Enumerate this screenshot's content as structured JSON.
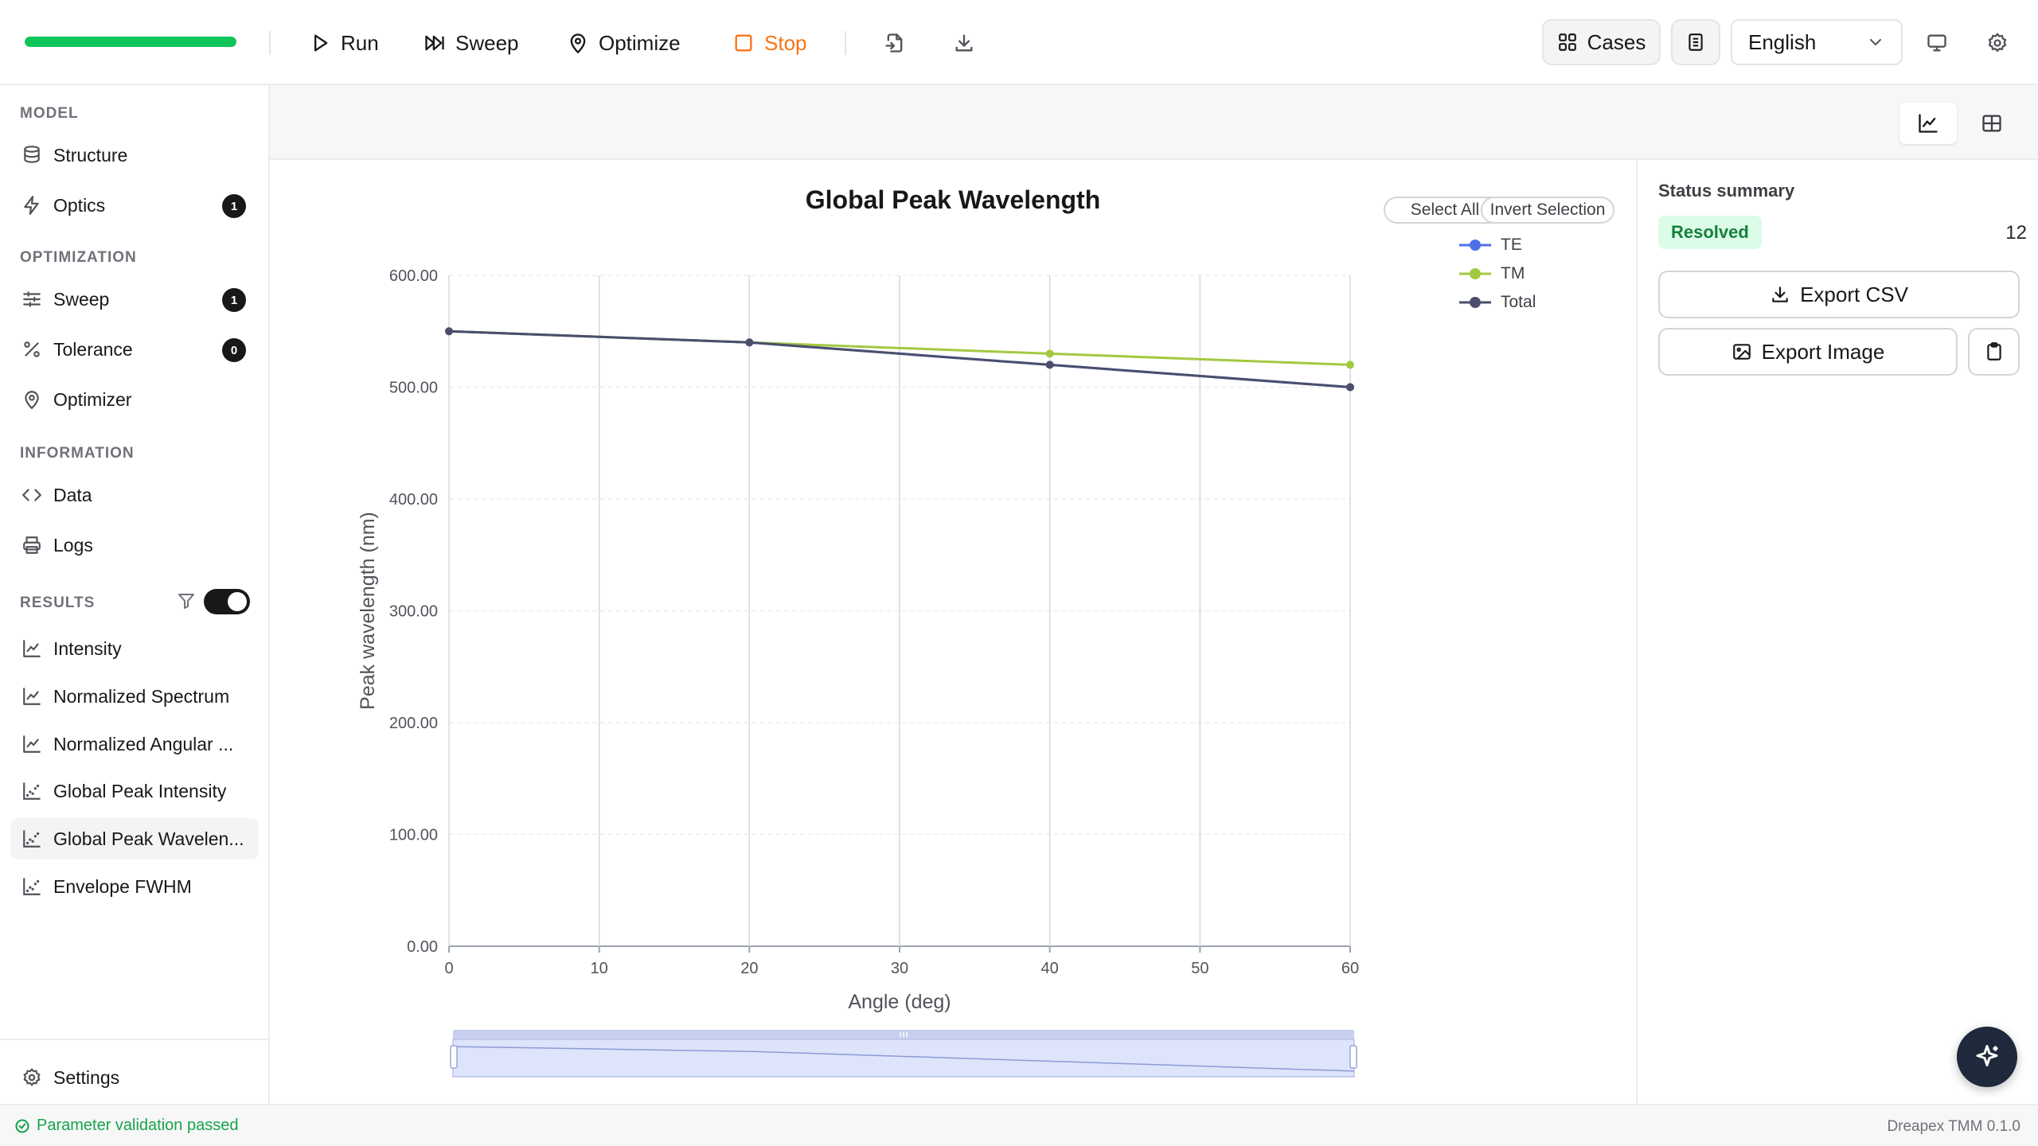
{
  "toolbar": {
    "progress_percent": 100,
    "run_label": "Run",
    "sweep_label": "Sweep",
    "optimize_label": "Optimize",
    "stop_label": "Stop",
    "cases_label": "Cases",
    "language": "English"
  },
  "sidebar": {
    "model_heading": "MODEL",
    "structure": "Structure",
    "optics": "Optics",
    "optics_badge": "1",
    "optimization_heading": "OPTIMIZATION",
    "sweep": "Sweep",
    "sweep_badge": "1",
    "tolerance": "Tolerance",
    "tolerance_badge": "0",
    "optimizer": "Optimizer",
    "information_heading": "INFORMATION",
    "data": "Data",
    "logs": "Logs",
    "results_heading": "RESULTS",
    "results_toggle_on": true,
    "results": [
      "Intensity",
      "Normalized Spectrum",
      "Normalized Angular ...",
      "Global Peak Intensity",
      "Global Peak Wavelen...",
      "Envelope FWHM"
    ],
    "active_result": "Global Peak Wavelen...",
    "settings": "Settings"
  },
  "chart_buttons": {
    "select_all": "Select All",
    "invert_selection": "Invert Selection"
  },
  "chart_data": {
    "type": "line",
    "title": "Global Peak Wavelength",
    "xlabel": "Angle (deg)",
    "ylabel": "Peak wavelength (nm)",
    "xlim": [
      0,
      60
    ],
    "ylim": [
      0,
      600
    ],
    "xticks": [
      0,
      10,
      20,
      30,
      40,
      50,
      60
    ],
    "yticks": [
      "0.00",
      "100.00",
      "200.00",
      "300.00",
      "400.00",
      "500.00",
      "600.00"
    ],
    "grid": true,
    "legend_position": "top-right",
    "series": [
      {
        "name": "TE",
        "color": "#4f6fe8",
        "x": [
          0,
          20,
          40,
          60
        ],
        "y": [
          550,
          540,
          520,
          500
        ]
      },
      {
        "name": "TM",
        "color": "#a3c940",
        "x": [
          0,
          20,
          40,
          60
        ],
        "y": [
          550,
          540,
          530,
          520
        ]
      },
      {
        "name": "Total",
        "color": "#4b4e6d",
        "x": [
          0,
          20,
          40,
          60
        ],
        "y": [
          550,
          540,
          520,
          500
        ]
      }
    ]
  },
  "side_panel": {
    "title": "Status summary",
    "status": "Resolved",
    "count": "12",
    "export_csv": "Export CSV",
    "export_image": "Export Image"
  },
  "statusbar": {
    "message": "Parameter validation passed",
    "version": "Dreapex TMM 0.1.0"
  }
}
